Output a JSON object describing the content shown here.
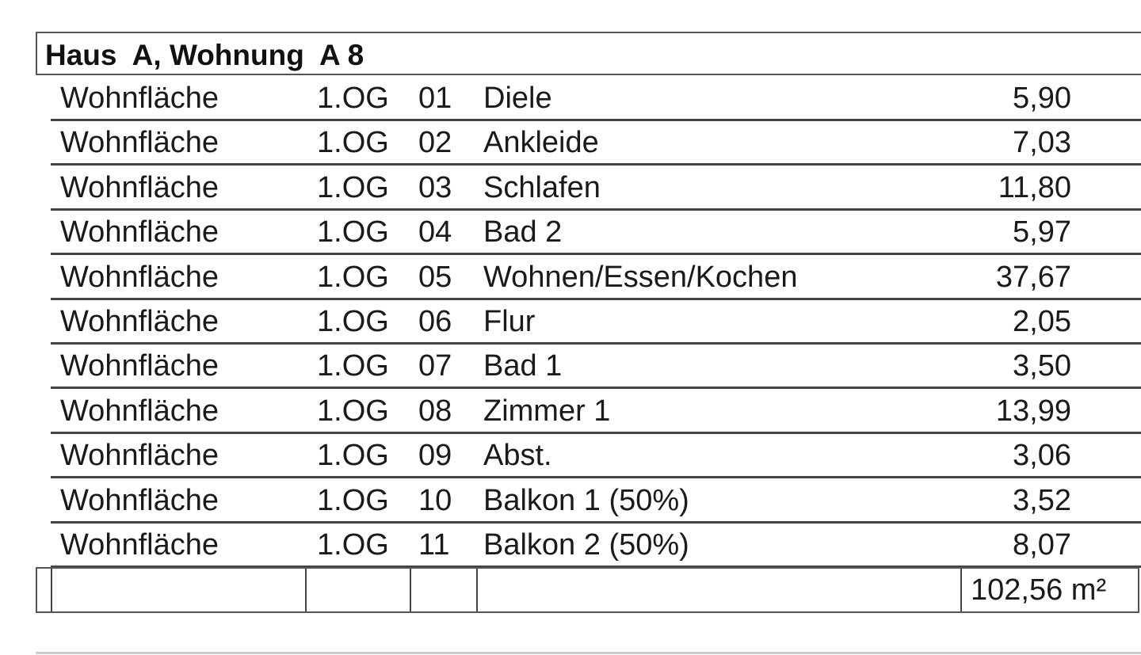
{
  "title": "Haus  A, Wohnung  A 8",
  "rows": [
    {
      "type": "Wohnfläche",
      "floor": "1.OG",
      "no": "01",
      "room": "Diele",
      "area": "5,90"
    },
    {
      "type": "Wohnfläche",
      "floor": "1.OG",
      "no": "02",
      "room": "Ankleide",
      "area": "7,03"
    },
    {
      "type": "Wohnfläche",
      "floor": "1.OG",
      "no": "03",
      "room": "Schlafen",
      "area": "11,80"
    },
    {
      "type": "Wohnfläche",
      "floor": "1.OG",
      "no": "04",
      "room": "Bad 2",
      "area": "5,97"
    },
    {
      "type": "Wohnfläche",
      "floor": "1.OG",
      "no": "05",
      "room": "Wohnen/Essen/Kochen",
      "area": "37,67"
    },
    {
      "type": "Wohnfläche",
      "floor": "1.OG",
      "no": "06",
      "room": "Flur",
      "area": "2,05"
    },
    {
      "type": "Wohnfläche",
      "floor": "1.OG",
      "no": "07",
      "room": "Bad 1",
      "area": "3,50"
    },
    {
      "type": "Wohnfläche",
      "floor": "1.OG",
      "no": "08",
      "room": "Zimmer 1",
      "area": "13,99"
    },
    {
      "type": "Wohnfläche",
      "floor": "1.OG",
      "no": "09",
      "room": "Abst.",
      "area": "3,06"
    },
    {
      "type": "Wohnfläche",
      "floor": "1.OG",
      "no": "10",
      "room": "Balkon 1 (50%)",
      "area": "3,52"
    },
    {
      "type": "Wohnfläche",
      "floor": "1.OG",
      "no": "11",
      "room": "Balkon 2 (50%)",
      "area": "8,07"
    }
  ],
  "total": "102,56 m²"
}
